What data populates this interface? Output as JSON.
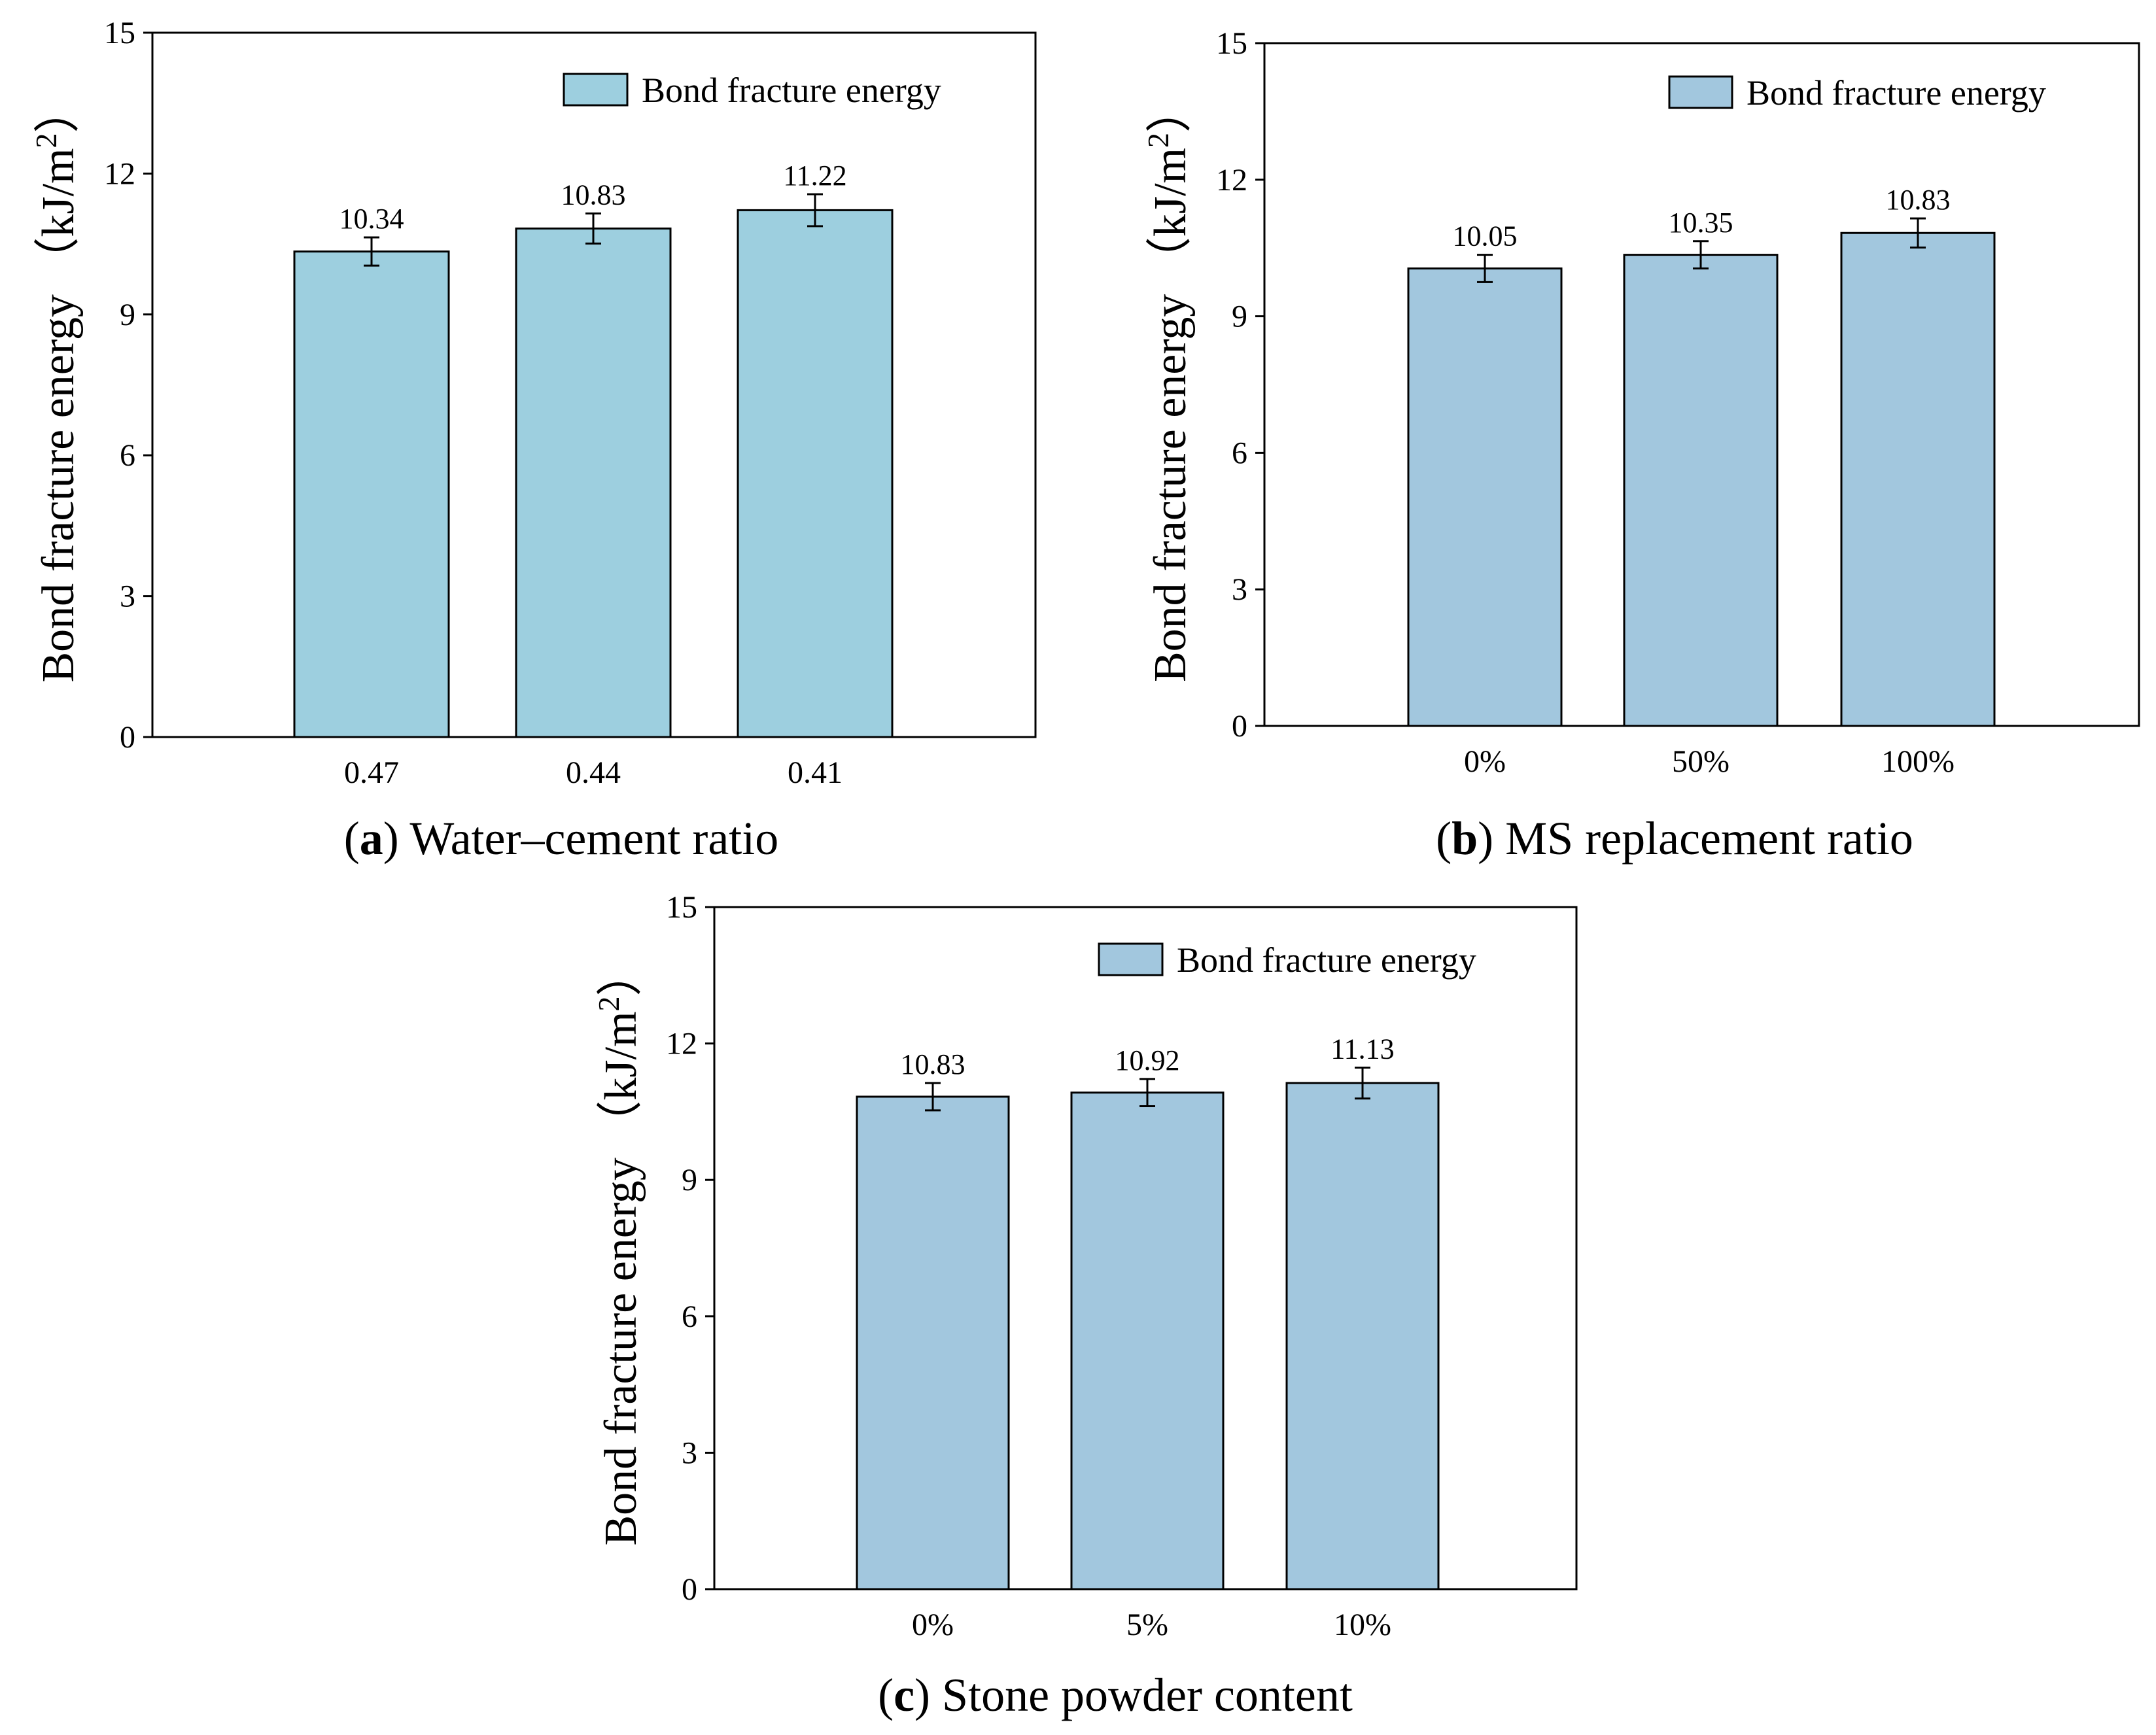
{
  "chart_data": [
    {
      "type": "bar",
      "panel": "a",
      "caption": "Water–cement ratio",
      "categories": [
        "0.47",
        "0.44",
        "0.41"
      ],
      "series": [
        {
          "name": "Bond fracture energy",
          "values": [
            10.34,
            10.83,
            11.22
          ],
          "errors": [
            0.3,
            0.32,
            0.34
          ]
        }
      ],
      "value_labels": [
        "10.34",
        "10.83",
        "11.22"
      ],
      "ylabel": "Bond fracture energy （kJ/m",
      "ylabel_sup": "2",
      "ylabel_close": "）",
      "ylim": [
        0,
        15
      ],
      "yticks": [
        "0",
        "3",
        "6",
        "9",
        "12",
        "15"
      ],
      "legend": "top-right",
      "bar_color": "#9dcfdf"
    },
    {
      "type": "bar",
      "panel": "b",
      "caption": "MS replacement ratio",
      "categories": [
        "0%",
        "50%",
        "100%"
      ],
      "series": [
        {
          "name": "Bond fracture energy",
          "values": [
            10.05,
            10.35,
            10.83
          ],
          "errors": [
            0.3,
            0.3,
            0.32
          ]
        }
      ],
      "value_labels": [
        "10.05",
        "10.35",
        "10.83"
      ],
      "ylabel": "Bond fracture energy （kJ/m",
      "ylabel_sup": "2",
      "ylabel_close": "）",
      "ylim": [
        0,
        15
      ],
      "yticks": [
        "0",
        "3",
        "6",
        "9",
        "12",
        "15"
      ],
      "legend": "top-right",
      "bar_color": "#a2c7de"
    },
    {
      "type": "bar",
      "panel": "c",
      "caption": "Stone powder content",
      "categories": [
        "0%",
        "5%",
        "10%"
      ],
      "series": [
        {
          "name": "Bond fracture energy",
          "values": [
            10.83,
            10.92,
            11.13
          ],
          "errors": [
            0.3,
            0.3,
            0.34
          ]
        }
      ],
      "value_labels": [
        "10.83",
        "10.92",
        "11.13"
      ],
      "ylabel": "Bond fracture energy （kJ/m",
      "ylabel_sup": "2",
      "ylabel_close": "）",
      "ylim": [
        0,
        15
      ],
      "yticks": [
        "0",
        "3",
        "6",
        "9",
        "12",
        "15"
      ],
      "legend": "top-right",
      "bar_color": "#a2c7de"
    }
  ]
}
